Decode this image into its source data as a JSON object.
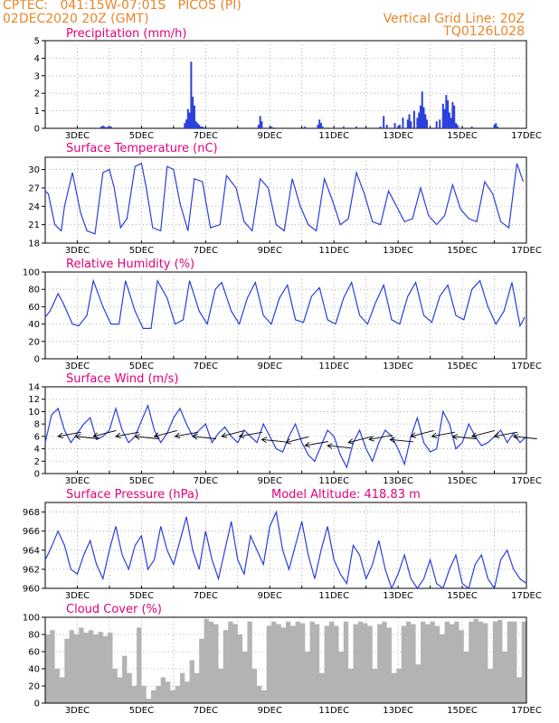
{
  "header": {
    "station": "CPTEC:   041:15W-07:01S   PICOS (PI)",
    "datetime": "02DEC2020 20Z (GMT)",
    "grid_line": "Vertical Grid Line: 20Z",
    "product_code": "TQ0126L028"
  },
  "colors": {
    "header": "#e8862a",
    "title": "#e0007a",
    "line": "#2a3fdc",
    "bar": "#2a3fdc",
    "cloud": "#b3b3b3",
    "grid": "#9a9a9a"
  },
  "chart_data": [
    {
      "type": "bar",
      "title": "Precipitation (mm/h)",
      "ylim": [
        0,
        5
      ],
      "yticks": [
        0,
        1,
        2,
        3,
        4,
        5
      ],
      "xlabels": [
        "3DEC",
        "5DEC",
        "7DEC",
        "9DEC",
        "11DEC",
        "13DEC",
        "15DEC",
        "17DEC"
      ],
      "x": [
        3.75,
        3.8,
        3.85,
        3.9,
        3.95,
        4.0,
        4.05,
        6.35,
        6.4,
        6.45,
        6.5,
        6.55,
        6.6,
        6.65,
        6.7,
        6.75,
        6.8,
        6.85,
        6.9,
        6.95,
        8.65,
        8.7,
        8.75,
        9.05,
        9.1,
        10.1,
        10.5,
        10.55,
        10.6,
        10.65,
        11.3,
        11.7,
        12.45,
        12.55,
        12.65,
        12.9,
        13.05,
        13.15,
        13.3,
        13.35,
        13.4,
        13.5,
        13.6,
        13.65,
        13.7,
        13.75,
        13.8,
        13.85,
        13.9,
        14.2,
        14.3,
        14.4,
        14.45,
        14.5,
        14.55,
        14.6,
        14.65,
        14.7,
        14.75,
        14.8,
        14.85,
        15.3,
        16.0,
        16.05,
        16.1
      ],
      "values": [
        0.1,
        0.15,
        0.1,
        0.05,
        0.1,
        0.05,
        0.1,
        0.3,
        0.5,
        1.1,
        0.9,
        3.8,
        1.8,
        1.3,
        0.4,
        0.3,
        0.2,
        0.1,
        0.1,
        0.05,
        0.2,
        0.7,
        0.4,
        0.1,
        0.05,
        0.1,
        0.2,
        0.5,
        0.3,
        0.1,
        0.1,
        0.1,
        0.1,
        0.7,
        0.2,
        0.3,
        0.2,
        0.6,
        0.5,
        0.8,
        0.4,
        1.0,
        0.6,
        0.9,
        1.3,
        2.1,
        1.2,
        0.8,
        0.5,
        0.4,
        0.5,
        1.4,
        1.1,
        1.9,
        1.6,
        0.9,
        0.6,
        1.5,
        1.3,
        0.3,
        0.2,
        0.1,
        0.2,
        0.3,
        0.1
      ]
    },
    {
      "type": "line",
      "title": "Surface Temperature (nC)",
      "ylim": [
        18,
        32
      ],
      "yticks": [
        18,
        21,
        24,
        27,
        30
      ],
      "xlabels": [
        "3DEC",
        "5DEC",
        "7DEC",
        "9DEC",
        "11DEC",
        "13DEC",
        "15DEC",
        "17DEC"
      ],
      "x": [
        2.0,
        2.1,
        2.3,
        2.5,
        2.6,
        2.85,
        3.1,
        3.3,
        3.55,
        3.8,
        4.0,
        4.15,
        4.35,
        4.55,
        4.8,
        5.0,
        5.15,
        5.35,
        5.6,
        5.8,
        6.0,
        6.2,
        6.45,
        6.65,
        6.9,
        7.15,
        7.45,
        7.65,
        7.95,
        8.2,
        8.45,
        8.7,
        8.95,
        9.2,
        9.45,
        9.7,
        9.95,
        10.2,
        10.45,
        10.7,
        10.95,
        11.2,
        11.45,
        11.7,
        11.95,
        12.2,
        12.45,
        12.7,
        12.95,
        13.2,
        13.45,
        13.7,
        13.95,
        14.2,
        14.45,
        14.7,
        14.95,
        15.2,
        15.45,
        15.7,
        15.95,
        16.2,
        16.45,
        16.7,
        16.9
      ],
      "values": [
        26.5,
        26.0,
        21.0,
        20.0,
        24.0,
        29.5,
        23.0,
        20.0,
        19.5,
        29.5,
        30.0,
        27.0,
        20.5,
        22.0,
        30.5,
        31.0,
        27.0,
        20.5,
        20.0,
        30.5,
        30.0,
        24.5,
        20.0,
        28.5,
        28.0,
        20.5,
        21.0,
        29.0,
        27.0,
        21.5,
        20.0,
        28.5,
        27.0,
        21.0,
        20.0,
        28.5,
        24.0,
        21.0,
        20.0,
        28.5,
        25.0,
        21.0,
        22.0,
        29.5,
        26.0,
        21.5,
        21.0,
        26.5,
        24.0,
        21.5,
        22.0,
        27.0,
        22.5,
        21.0,
        22.5,
        27.5,
        23.5,
        22.0,
        21.5,
        28.0,
        26.0,
        21.5,
        20.5,
        31.0,
        28.0
      ]
    },
    {
      "type": "line",
      "title": "Relative Humidity (%)",
      "ylim": [
        0,
        100
      ],
      "yticks": [
        0,
        20,
        40,
        60,
        80,
        100
      ],
      "xlabels": [
        "3DEC",
        "5DEC",
        "7DEC",
        "9DEC",
        "11DEC",
        "13DEC",
        "15DEC",
        "17DEC"
      ],
      "x": [
        2.0,
        2.15,
        2.4,
        2.55,
        2.85,
        3.05,
        3.3,
        3.5,
        3.8,
        4.05,
        4.3,
        4.5,
        4.8,
        5.05,
        5.3,
        5.5,
        5.8,
        6.05,
        6.3,
        6.5,
        6.8,
        7.05,
        7.3,
        7.5,
        7.8,
        8.05,
        8.3,
        8.55,
        8.8,
        9.05,
        9.3,
        9.55,
        9.8,
        10.05,
        10.3,
        10.55,
        10.8,
        11.05,
        11.3,
        11.55,
        11.8,
        12.05,
        12.3,
        12.55,
        12.8,
        13.05,
        13.3,
        13.55,
        13.8,
        14.05,
        14.3,
        14.55,
        14.8,
        15.05,
        15.3,
        15.55,
        15.8,
        16.05,
        16.3,
        16.55,
        16.8,
        16.95
      ],
      "values": [
        48.0,
        55.0,
        75.0,
        65.0,
        40.0,
        38.0,
        50.0,
        90.0,
        60.0,
        40.0,
        40.0,
        90.0,
        55.0,
        35.0,
        35.0,
        90.0,
        70.0,
        40.0,
        45.0,
        90.0,
        55.0,
        40.0,
        80.0,
        88.0,
        55.0,
        40.0,
        70.0,
        88.0,
        50.0,
        40.0,
        70.0,
        85.0,
        45.0,
        42.0,
        72.0,
        82.0,
        45.0,
        40.0,
        70.0,
        88.0,
        50.0,
        40.0,
        65.0,
        85.0,
        45.0,
        40.0,
        72.0,
        88.0,
        50.0,
        42.0,
        72.0,
        85.0,
        50.0,
        45.0,
        80.0,
        90.0,
        60.0,
        40.0,
        55.0,
        88.0,
        38.0,
        48.0
      ]
    },
    {
      "type": "line",
      "title": "Surface Wind (m/s)",
      "ylim": [
        0,
        14
      ],
      "yticks": [
        0,
        2,
        4,
        6,
        8,
        10,
        12,
        14
      ],
      "xlabels": [
        "3DEC",
        "5DEC",
        "7DEC",
        "9DEC",
        "11DEC",
        "13DEC",
        "15DEC",
        "17DEC"
      ],
      "x": [
        2.0,
        2.2,
        2.4,
        2.6,
        2.8,
        3.0,
        3.2,
        3.4,
        3.6,
        3.8,
        4.0,
        4.2,
        4.4,
        4.6,
        4.8,
        5.0,
        5.2,
        5.4,
        5.6,
        5.8,
        6.0,
        6.2,
        6.4,
        6.6,
        6.8,
        7.0,
        7.2,
        7.4,
        7.6,
        7.8,
        8.0,
        8.2,
        8.4,
        8.6,
        8.8,
        9.0,
        9.2,
        9.4,
        9.6,
        9.8,
        10.0,
        10.2,
        10.4,
        10.6,
        10.8,
        11.0,
        11.2,
        11.4,
        11.6,
        11.8,
        12.0,
        12.2,
        12.4,
        12.6,
        12.8,
        13.0,
        13.2,
        13.4,
        13.6,
        13.8,
        14.0,
        14.2,
        14.4,
        14.6,
        14.8,
        15.0,
        15.2,
        15.4,
        15.6,
        15.8,
        16.0,
        16.2,
        16.4,
        16.6,
        16.8,
        17.0
      ],
      "values": [
        5.0,
        9.5,
        10.5,
        7.0,
        5.0,
        6.5,
        8.0,
        9.0,
        5.5,
        6.0,
        7.0,
        10.5,
        7.0,
        5.0,
        6.0,
        8.5,
        11.0,
        7.0,
        5.0,
        6.5,
        9.0,
        10.5,
        8.0,
        6.0,
        7.0,
        8.0,
        5.0,
        6.5,
        7.5,
        6.0,
        5.0,
        7.0,
        6.0,
        5.0,
        8.0,
        6.0,
        4.0,
        3.5,
        6.0,
        8.0,
        5.0,
        3.0,
        2.0,
        4.5,
        7.0,
        6.0,
        3.0,
        1.0,
        5.0,
        7.0,
        4.0,
        2.0,
        5.0,
        7.0,
        6.0,
        4.0,
        1.5,
        6.0,
        9.0,
        5.0,
        3.5,
        4.0,
        10.0,
        8.0,
        4.0,
        5.0,
        8.0,
        6.0,
        4.5,
        5.0,
        6.0,
        7.0,
        5.0,
        6.5,
        5.0,
        6.0
      ],
      "vectors": {
        "x": [
          2.4,
          2.95,
          3.5,
          4.2,
          4.8,
          5.4,
          6.05,
          6.6,
          7.5,
          8.05,
          8.75,
          9.5,
          10.1,
          10.8,
          11.45,
          12.1,
          12.75,
          13.4,
          14.05,
          14.7,
          15.3,
          16.0,
          16.6
        ],
        "y": [
          6.0,
          6.0,
          6.0,
          6.0,
          6.0,
          6.0,
          6.0,
          6.0,
          6.0,
          6.0,
          5.5,
          5.0,
          4.5,
          4.5,
          5.0,
          5.5,
          5.5,
          6.0,
          6.0,
          6.0,
          6.0,
          6.0,
          6.0
        ]
      }
    },
    {
      "type": "line",
      "title": "Surface Pressure (hPa)",
      "annotation": "Model Altitude: 418.83 m",
      "ylim": [
        960,
        969
      ],
      "yticks": [
        960,
        962,
        964,
        966,
        968
      ],
      "xlabels": [
        "3DEC",
        "5DEC",
        "7DEC",
        "9DEC",
        "11DEC",
        "13DEC",
        "15DEC",
        "17DEC"
      ],
      "x": [
        2.0,
        2.15,
        2.4,
        2.6,
        2.8,
        3.0,
        3.2,
        3.4,
        3.6,
        3.8,
        4.0,
        4.2,
        4.4,
        4.6,
        4.8,
        5.0,
        5.2,
        5.4,
        5.6,
        5.8,
        6.0,
        6.2,
        6.4,
        6.6,
        6.8,
        7.0,
        7.2,
        7.4,
        7.6,
        7.8,
        8.0,
        8.2,
        8.4,
        8.6,
        8.8,
        9.0,
        9.2,
        9.4,
        9.6,
        9.8,
        10.0,
        10.2,
        10.4,
        10.6,
        10.8,
        11.0,
        11.2,
        11.4,
        11.6,
        11.8,
        12.0,
        12.2,
        12.4,
        12.6,
        12.8,
        13.0,
        13.2,
        13.4,
        13.6,
        13.8,
        14.0,
        14.2,
        14.4,
        14.6,
        14.8,
        15.0,
        15.2,
        15.4,
        15.6,
        15.8,
        16.0,
        16.2,
        16.4,
        16.6,
        16.8,
        17.0
      ],
      "values": [
        963.0,
        964.0,
        966.0,
        964.5,
        962.0,
        961.5,
        963.5,
        965.0,
        962.5,
        961.0,
        964.0,
        966.5,
        963.5,
        962.0,
        964.5,
        965.5,
        962.0,
        963.0,
        966.5,
        964.0,
        962.5,
        965.0,
        967.5,
        964.0,
        962.0,
        966.0,
        963.0,
        961.0,
        964.0,
        967.0,
        963.0,
        961.5,
        965.5,
        964.0,
        962.5,
        966.5,
        968.0,
        964.0,
        962.0,
        964.5,
        967.0,
        963.5,
        961.0,
        964.0,
        966.5,
        963.0,
        961.5,
        960.5,
        964.5,
        963.5,
        961.0,
        962.5,
        965.0,
        962.0,
        960.0,
        961.5,
        963.5,
        961.0,
        960.0,
        961.0,
        963.0,
        960.5,
        960.0,
        962.0,
        963.5,
        960.5,
        960.0,
        962.5,
        963.5,
        961.0,
        960.0,
        963.0,
        964.0,
        962.0,
        961.0,
        960.5
      ]
    },
    {
      "type": "area",
      "title": "Cloud Cover (%)",
      "ylim": [
        0,
        100
      ],
      "yticks": [
        0,
        20,
        40,
        60,
        80,
        100
      ],
      "xlabels": [
        "3DEC",
        "5DEC",
        "7DEC",
        "9DEC",
        "11DEC",
        "13DEC",
        "15DEC",
        "17DEC"
      ],
      "x": [
        2.0,
        2.15,
        2.3,
        2.45,
        2.6,
        2.75,
        2.9,
        3.05,
        3.2,
        3.35,
        3.5,
        3.65,
        3.8,
        3.95,
        4.1,
        4.25,
        4.4,
        4.55,
        4.7,
        4.85,
        5.0,
        5.15,
        5.3,
        5.45,
        5.6,
        5.75,
        5.9,
        6.05,
        6.2,
        6.35,
        6.5,
        6.65,
        6.8,
        6.95,
        7.1,
        7.25,
        7.4,
        7.55,
        7.7,
        7.85,
        8.0,
        8.15,
        8.3,
        8.45,
        8.6,
        8.75,
        8.9,
        9.05,
        9.2,
        9.35,
        9.5,
        9.65,
        9.8,
        9.95,
        10.1,
        10.25,
        10.4,
        10.55,
        10.7,
        10.85,
        11.0,
        11.15,
        11.3,
        11.45,
        11.6,
        11.75,
        11.9,
        12.05,
        12.2,
        12.35,
        12.5,
        12.65,
        12.8,
        12.95,
        13.1,
        13.25,
        13.4,
        13.55,
        13.7,
        13.85,
        14.0,
        14.15,
        14.3,
        14.45,
        14.6,
        14.75,
        14.9,
        15.05,
        15.2,
        15.35,
        15.5,
        15.65,
        15.8,
        15.95,
        16.1,
        16.25,
        16.4,
        16.55,
        16.7,
        16.85,
        17.0
      ],
      "values": [
        80,
        85,
        40,
        30,
        75,
        85,
        80,
        88,
        82,
        85,
        80,
        83,
        78,
        82,
        40,
        30,
        55,
        35,
        20,
        88,
        20,
        5,
        15,
        20,
        30,
        25,
        15,
        20,
        35,
        25,
        50,
        35,
        75,
        98,
        95,
        92,
        40,
        85,
        95,
        92,
        80,
        60,
        95,
        40,
        20,
        15,
        90,
        95,
        92,
        88,
        95,
        90,
        95,
        93,
        60,
        95,
        92,
        35,
        90,
        95,
        90,
        60,
        95,
        40,
        92,
        95,
        93,
        90,
        40,
        92,
        95,
        88,
        35,
        40,
        90,
        95,
        92,
        45,
        95,
        92,
        95,
        90,
        80,
        95,
        92,
        95,
        85,
        60,
        95,
        98,
        95,
        93,
        40,
        95,
        97,
        60,
        95,
        95,
        30,
        95,
        98
      ]
    }
  ]
}
